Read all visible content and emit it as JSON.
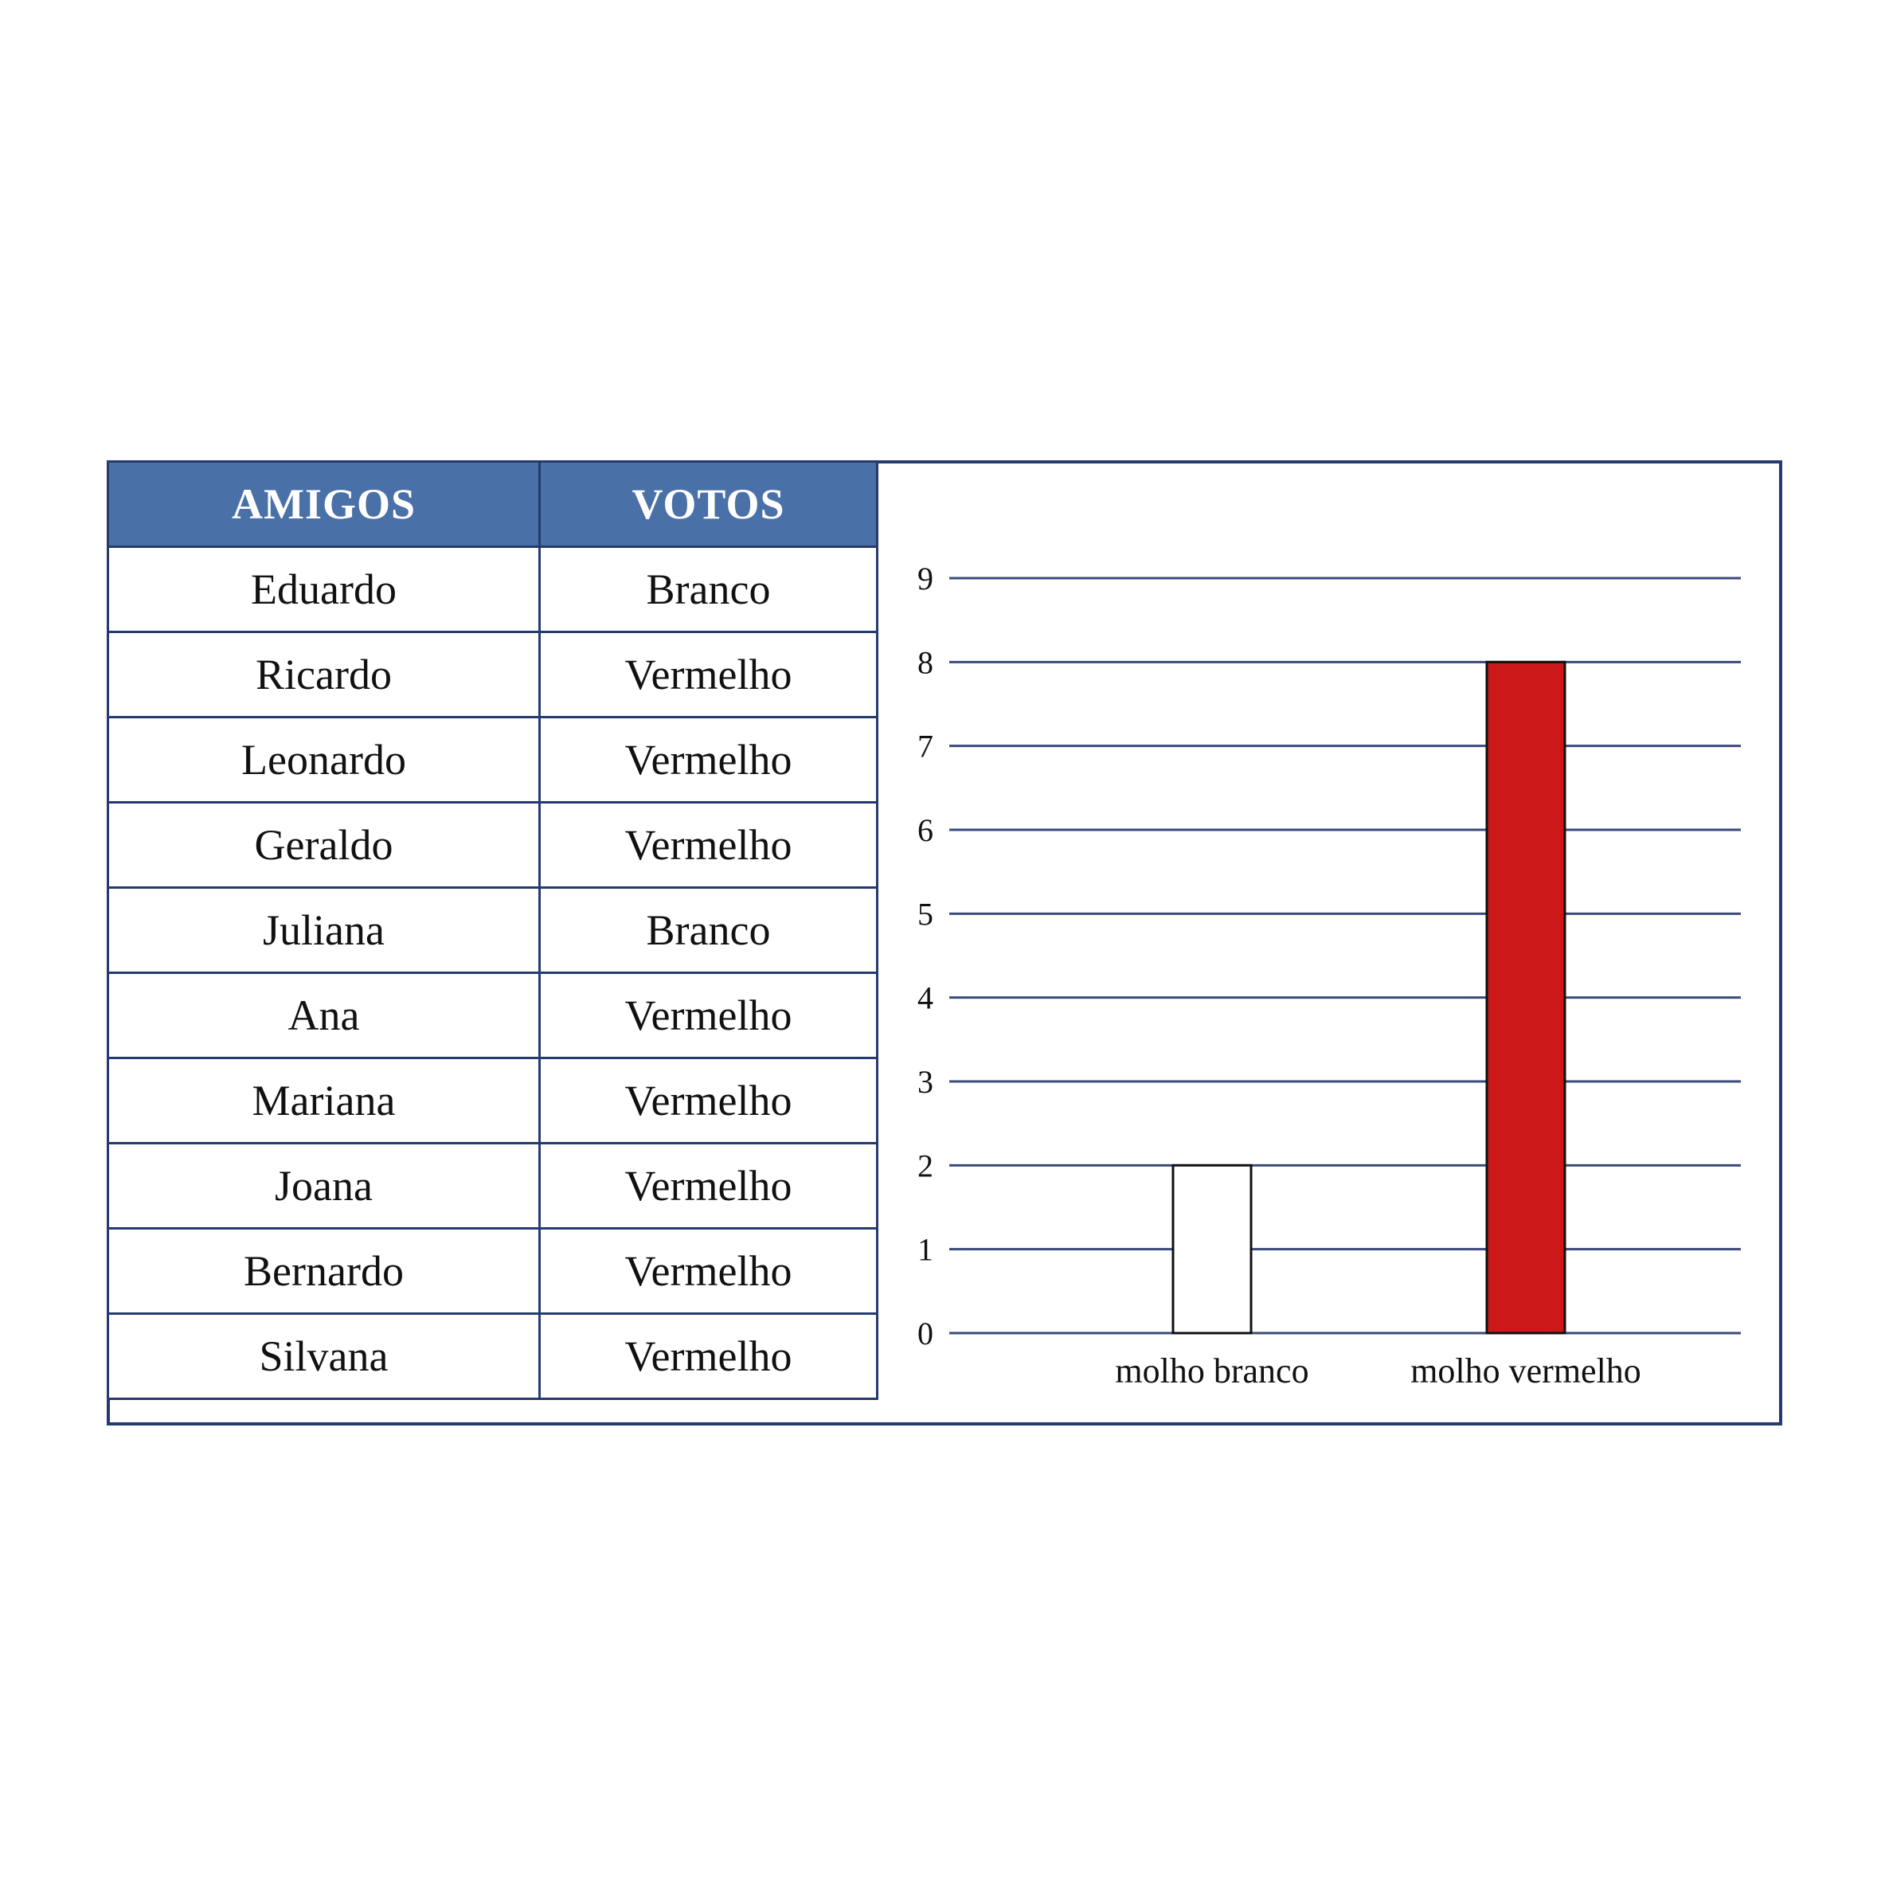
{
  "table": {
    "headers": [
      "AMIGOS",
      "VOTOS"
    ],
    "rows": [
      [
        "Eduardo",
        "Branco"
      ],
      [
        "Ricardo",
        "Vermelho"
      ],
      [
        "Leonardo",
        "Vermelho"
      ],
      [
        "Geraldo",
        "Vermelho"
      ],
      [
        "Juliana",
        "Branco"
      ],
      [
        "Ana",
        "Vermelho"
      ],
      [
        "Mariana",
        "Vermelho"
      ],
      [
        "Joana",
        "Vermelho"
      ],
      [
        "Bernardo",
        "Vermelho"
      ],
      [
        "Silvana",
        "Vermelho"
      ]
    ]
  },
  "chart_data": {
    "type": "bar",
    "categories": [
      "molho branco",
      "molho vermelho"
    ],
    "values": [
      2,
      8
    ],
    "bar_colors": [
      "#ffffff",
      "#cc1818"
    ],
    "ylim": [
      0,
      9
    ],
    "yticks": [
      "0",
      "1",
      "2",
      "3",
      "4",
      "5",
      "6",
      "7",
      "8",
      "9"
    ],
    "grid": true,
    "title": "",
    "xlabel": "",
    "ylabel": ""
  },
  "colors": {
    "border": "#253a6e",
    "header_bg": "#4a70a8",
    "grid": "#3a4a7a"
  }
}
